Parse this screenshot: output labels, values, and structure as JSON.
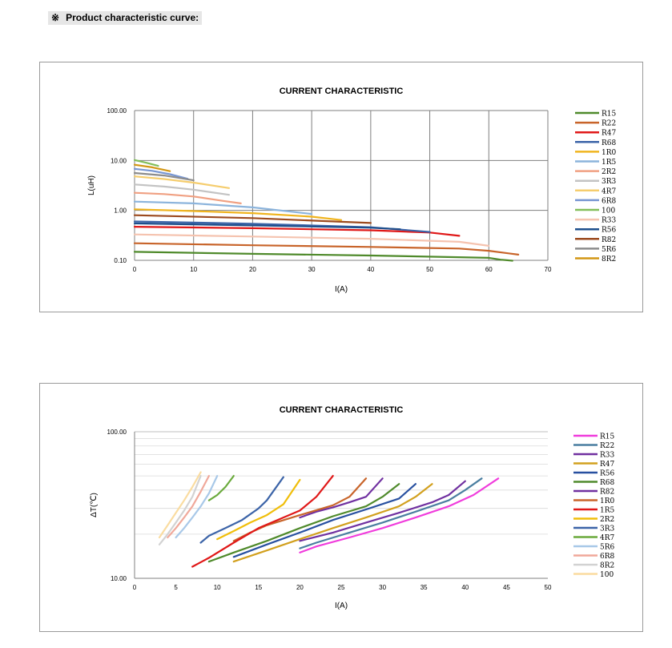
{
  "header": {
    "mark": "※",
    "title": "Product characteristic curve:"
  },
  "chart_data": [
    {
      "type": "line",
      "title": "CURRENT CHARACTERISTIC",
      "xlabel": "I(A)",
      "ylabel": "L(uH)",
      "xlim": [
        0,
        70
      ],
      "ylim": [
        0.1,
        100
      ],
      "yscale": "log",
      "xticks": [
        "0",
        "10",
        "20",
        "30",
        "40",
        "50",
        "60",
        "70"
      ],
      "yticks": [
        "100.00",
        "10.00",
        "1.00",
        "0.10"
      ],
      "grid": "vertical-major + horizontal-major",
      "legend": "right",
      "series": [
        {
          "name": "R15",
          "color": "#4f8a2b",
          "x": [
            0,
            20,
            40,
            60,
            62,
            64
          ],
          "y": [
            0.148,
            0.135,
            0.125,
            0.112,
            0.103,
            0.098
          ]
        },
        {
          "name": "R22",
          "color": "#c8642a",
          "x": [
            0,
            20,
            40,
            55,
            60,
            65
          ],
          "y": [
            0.22,
            0.2,
            0.185,
            0.172,
            0.155,
            0.13
          ]
        },
        {
          "name": "R47",
          "color": "#e01818",
          "x": [
            0,
            20,
            40,
            50,
            55
          ],
          "y": [
            0.47,
            0.44,
            0.4,
            0.36,
            0.31
          ]
        },
        {
          "name": "R68",
          "color": "#3c64a8",
          "x": [
            0,
            20,
            40,
            50
          ],
          "y": [
            0.6,
            0.54,
            0.46,
            0.37
          ]
        },
        {
          "name": "1R0",
          "color": "#f0b41e",
          "x": [
            0,
            10,
            20,
            30,
            35
          ],
          "y": [
            1.05,
            0.97,
            0.88,
            0.75,
            0.64
          ]
        },
        {
          "name": "1R5",
          "color": "#8cb4dc",
          "x": [
            0,
            10,
            20,
            30
          ],
          "y": [
            1.5,
            1.38,
            1.15,
            0.85
          ]
        },
        {
          "name": "2R2",
          "color": "#f0a082",
          "x": [
            0,
            5,
            10,
            15,
            18
          ],
          "y": [
            2.25,
            2.12,
            1.9,
            1.55,
            1.38
          ]
        },
        {
          "name": "3R3",
          "color": "#c3c3c3",
          "x": [
            0,
            5,
            10,
            16
          ],
          "y": [
            3.3,
            3.0,
            2.6,
            2.05
          ]
        },
        {
          "name": "4R7",
          "color": "#f5cd6e",
          "x": [
            0,
            5,
            10,
            16
          ],
          "y": [
            4.8,
            4.25,
            3.6,
            2.8
          ]
        },
        {
          "name": "6R8",
          "color": "#7896d2",
          "x": [
            0,
            3,
            6,
            9
          ],
          "y": [
            6.8,
            6.2,
            5.3,
            4.3
          ]
        },
        {
          "name": "100",
          "color": "#82be5a",
          "x": [
            0,
            2,
            4
          ],
          "y": [
            10.2,
            9.0,
            7.8
          ]
        },
        {
          "name": "R33",
          "color": "#f5c3af",
          "x": [
            0,
            20,
            40,
            55,
            60
          ],
          "y": [
            0.33,
            0.3,
            0.27,
            0.235,
            0.195
          ]
        },
        {
          "name": "R56",
          "color": "#1e4f8c",
          "x": [
            0,
            20,
            40,
            45
          ],
          "y": [
            0.55,
            0.5,
            0.45,
            0.42
          ]
        },
        {
          "name": "R82",
          "color": "#9c4a1e",
          "x": [
            0,
            20,
            40
          ],
          "y": [
            0.8,
            0.7,
            0.56
          ]
        },
        {
          "name": "5R6",
          "color": "#8c8c8c",
          "x": [
            0,
            5,
            10
          ],
          "y": [
            5.6,
            5.0,
            4.0
          ]
        },
        {
          "name": "8R2",
          "color": "#d29614",
          "x": [
            0,
            3,
            6
          ],
          "y": [
            8.2,
            7.3,
            6.1
          ]
        }
      ]
    },
    {
      "type": "line",
      "title": "CURRENT CHARACTERISTIC",
      "xlabel": "I(A)",
      "ylabel": "ΔT(℃)",
      "xlim": [
        0,
        50
      ],
      "ylim": [
        10,
        100
      ],
      "yscale": "log",
      "xticks": [
        "0",
        "5",
        "10",
        "15",
        "20",
        "25",
        "30",
        "35",
        "40",
        "45",
        "50"
      ],
      "yticks": [
        "100.00",
        "10.00"
      ],
      "grid": "horizontal-minor",
      "legend": "right",
      "series": [
        {
          "name": "R15",
          "color": "#f03cdc",
          "x": [
            20,
            22,
            26,
            30,
            34,
            38,
            41,
            44
          ],
          "y": [
            15,
            16.5,
            19,
            22,
            26,
            31,
            37,
            48
          ]
        },
        {
          "name": "R22",
          "color": "#4a7ea0",
          "x": [
            20,
            22,
            26,
            30,
            34,
            38,
            40,
            42
          ],
          "y": [
            16,
            17.5,
            20.5,
            24,
            28.5,
            34,
            40,
            48
          ]
        },
        {
          "name": "R33",
          "color": "#7030a0",
          "x": [
            20,
            24,
            28,
            32,
            36,
            38,
            40
          ],
          "y": [
            18,
            20.5,
            24,
            28,
            33,
            37,
            46
          ]
        },
        {
          "name": "R47",
          "color": "#d2a01e",
          "x": [
            12,
            16,
            20,
            24,
            28,
            32,
            34,
            36
          ],
          "y": [
            13,
            15.5,
            18.5,
            22,
            26,
            31,
            36,
            44
          ]
        },
        {
          "name": "R56",
          "color": "#2850a0",
          "x": [
            12,
            16,
            20,
            24,
            28,
            32,
            34
          ],
          "y": [
            14,
            17,
            20.5,
            25,
            29.5,
            35,
            44
          ]
        },
        {
          "name": "R68",
          "color": "#4f8a2b",
          "x": [
            9,
            12,
            16,
            20,
            24,
            28,
            30,
            32
          ],
          "y": [
            13,
            15,
            18,
            22,
            26.5,
            31,
            36,
            44
          ]
        },
        {
          "name": "R82",
          "color": "#7030a0",
          "x": [
            20,
            22,
            24,
            26,
            28,
            30
          ],
          "y": [
            26,
            28.5,
            30.5,
            33,
            36,
            48
          ]
        },
        {
          "name": "1R0",
          "color": "#c8642a",
          "x": [
            12,
            14,
            16,
            20,
            24,
            26,
            28
          ],
          "y": [
            18,
            20.5,
            23,
            27,
            31.5,
            36,
            48
          ]
        },
        {
          "name": "1R5",
          "color": "#e01818",
          "x": [
            7,
            9,
            12,
            15,
            18,
            20,
            22,
            24
          ],
          "y": [
            12,
            13.8,
            17.5,
            22,
            26,
            29,
            36,
            50
          ]
        },
        {
          "name": "2R2",
          "color": "#f0be0a",
          "x": [
            10,
            12,
            14,
            16,
            18,
            20
          ],
          "y": [
            18.5,
            21,
            24,
            27,
            32,
            47
          ]
        },
        {
          "name": "3R3",
          "color": "#3c64a8",
          "x": [
            8,
            9,
            11,
            13,
            15,
            16,
            18
          ],
          "y": [
            17.5,
            19.5,
            22,
            25,
            30,
            34,
            49
          ]
        },
        {
          "name": "4R7",
          "color": "#6aaa3c",
          "x": [
            9,
            10,
            11,
            12
          ],
          "y": [
            34,
            37,
            42,
            50
          ]
        },
        {
          "name": "5R6",
          "color": "#a8c8e8",
          "x": [
            5,
            6,
            7,
            8,
            9,
            10
          ],
          "y": [
            19,
            22,
            26,
            31,
            38,
            50
          ]
        },
        {
          "name": "6R8",
          "color": "#f0a89a",
          "x": [
            4,
            5,
            6,
            7,
            8,
            9
          ],
          "y": [
            19,
            22,
            26,
            31,
            39,
            50
          ]
        },
        {
          "name": "8R2",
          "color": "#d2d2d2",
          "x": [
            3,
            4,
            5,
            6,
            7,
            8
          ],
          "y": [
            17,
            20,
            24,
            29,
            36,
            50
          ]
        },
        {
          "name": "100",
          "color": "#fadca0",
          "x": [
            3,
            4,
            5,
            6,
            7,
            8
          ],
          "y": [
            19,
            23,
            28,
            34,
            42,
            53
          ]
        }
      ]
    }
  ]
}
